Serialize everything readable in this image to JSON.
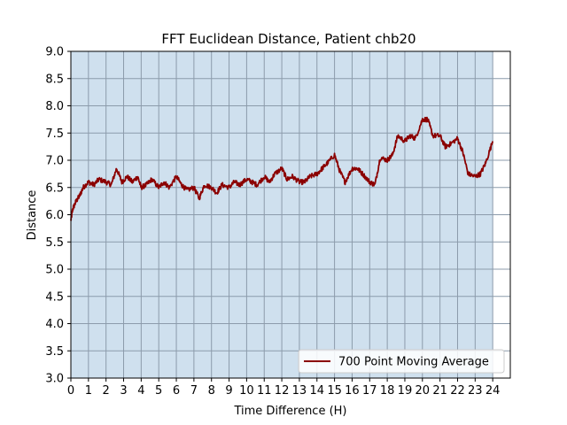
{
  "chart_data": {
    "type": "line",
    "title": "FFT Euclidean Distance, Patient chb20",
    "xlabel": "Time Difference (H)",
    "ylabel": "Distance",
    "xlim": [
      0,
      25
    ],
    "ylim": [
      3.0,
      9.0
    ],
    "xticks": [
      0,
      1,
      2,
      3,
      4,
      5,
      6,
      7,
      8,
      9,
      10,
      11,
      12,
      13,
      14,
      15,
      16,
      17,
      18,
      19,
      20,
      21,
      22,
      23,
      24
    ],
    "yticks": [
      "3.0",
      "3.5",
      "4.0",
      "4.5",
      "5.0",
      "5.5",
      "6.0",
      "6.5",
      "7.0",
      "7.5",
      "8.0",
      "8.5",
      "9.0"
    ],
    "grid": true,
    "legend_position": "lower-right",
    "shaded_region_x": [
      0,
      24
    ],
    "colors": {
      "line": "#8b0000",
      "shade": "#cfe0ee",
      "grid": "#8c9bab"
    },
    "series": [
      {
        "name": "700 Point Moving Average",
        "x": [
          0,
          0.1,
          0.3,
          0.5,
          0.7,
          1.0,
          1.3,
          1.6,
          2.0,
          2.3,
          2.6,
          2.9,
          3.2,
          3.5,
          3.8,
          4.0,
          4.3,
          4.6,
          5.0,
          5.3,
          5.6,
          6.0,
          6.3,
          6.6,
          7.0,
          7.3,
          7.6,
          8.0,
          8.3,
          8.6,
          9.0,
          9.3,
          9.6,
          10.0,
          10.3,
          10.6,
          11.0,
          11.3,
          11.6,
          12.0,
          12.3,
          12.6,
          13.0,
          13.3,
          13.6,
          14.0,
          14.3,
          14.6,
          15.0,
          15.3,
          15.6,
          16.0,
          16.3,
          16.6,
          17.0,
          17.3,
          17.6,
          18.0,
          18.3,
          18.6,
          19.0,
          19.3,
          19.6,
          20.0,
          20.3,
          20.6,
          21.0,
          21.3,
          21.6,
          22.0,
          22.3,
          22.6,
          23.0,
          23.3,
          23.6,
          24.0
        ],
        "values": [
          5.9,
          6.1,
          6.25,
          6.35,
          6.5,
          6.6,
          6.55,
          6.65,
          6.6,
          6.55,
          6.85,
          6.6,
          6.7,
          6.6,
          6.7,
          6.5,
          6.55,
          6.65,
          6.5,
          6.6,
          6.5,
          6.7,
          6.55,
          6.45,
          6.5,
          6.3,
          6.55,
          6.5,
          6.4,
          6.55,
          6.5,
          6.6,
          6.55,
          6.65,
          6.6,
          6.55,
          6.7,
          6.6,
          6.75,
          6.85,
          6.65,
          6.7,
          6.6,
          6.6,
          6.7,
          6.75,
          6.85,
          6.95,
          7.1,
          6.8,
          6.6,
          6.85,
          6.85,
          6.75,
          6.6,
          6.55,
          7.05,
          7.0,
          7.1,
          7.45,
          7.35,
          7.45,
          7.4,
          7.75,
          7.75,
          7.45,
          7.45,
          7.25,
          7.3,
          7.4,
          7.15,
          6.75,
          6.7,
          6.75,
          6.95,
          7.35
        ]
      }
    ]
  }
}
